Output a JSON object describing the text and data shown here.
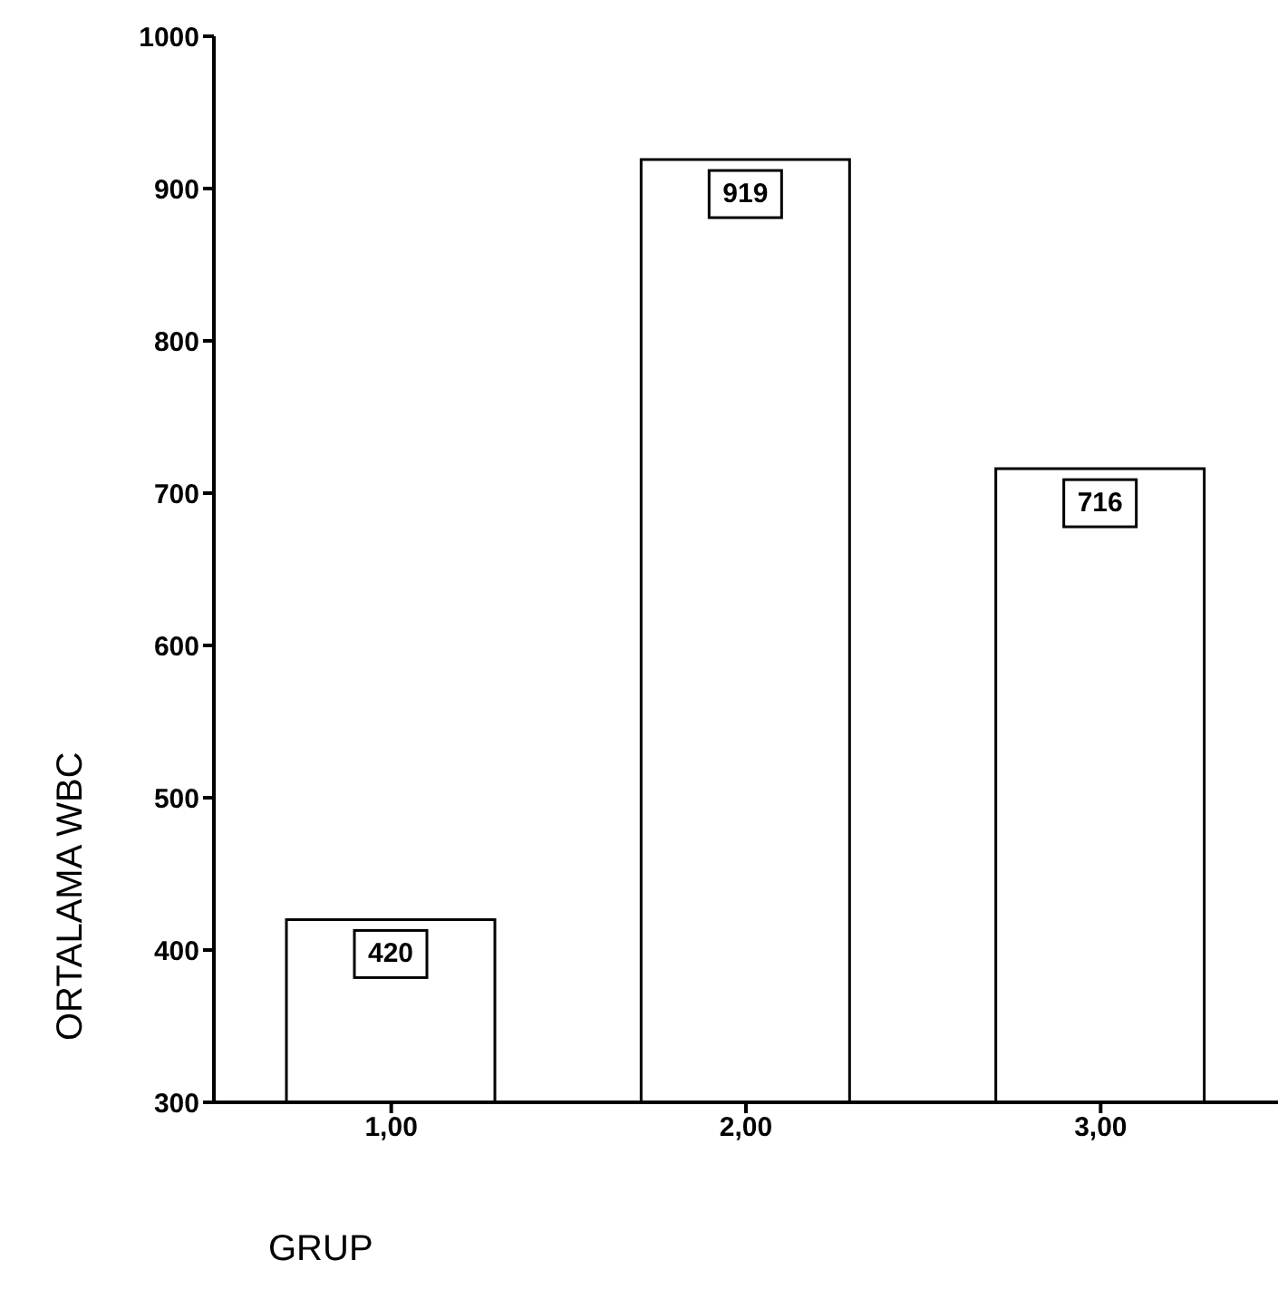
{
  "chart_data": {
    "type": "bar",
    "xlabel": "GRUP",
    "ylabel": "ORTALAMA WBC",
    "categories": [
      "1,00",
      "2,00",
      "3,00"
    ],
    "values": [
      420,
      919,
      716
    ],
    "color": "#ffffff",
    "ylim": [
      300,
      1000
    ],
    "yticks": [
      300,
      400,
      500,
      600,
      700,
      800,
      900,
      1000
    ],
    "data_labels": true
  }
}
